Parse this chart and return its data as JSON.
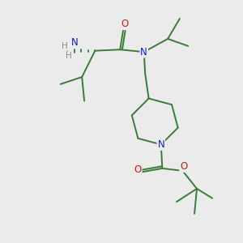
{
  "background_color": "#ebebeb",
  "bond_color": "#3a7a3a",
  "atom_colors": {
    "N": "#1818cc",
    "O": "#cc1818",
    "H": "#888888"
  },
  "figsize": [
    3.0,
    3.0
  ],
  "dpi": 100,
  "lw": 1.4,
  "fontsize": 8.5
}
